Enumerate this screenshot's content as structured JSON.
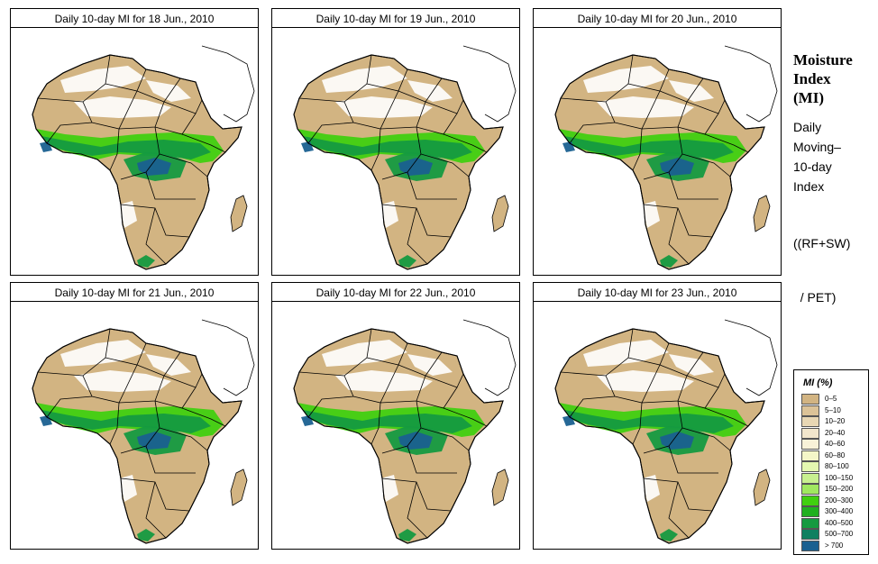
{
  "panels": [
    {
      "title": "Daily 10-day MI for  18 Jun., 2010"
    },
    {
      "title": "Daily 10-day MI for  19 Jun., 2010"
    },
    {
      "title": "Daily 10-day MI for  20 Jun., 2010"
    },
    {
      "title": "Daily 10-day MI for  21 Jun., 2010"
    },
    {
      "title": "Daily 10-day MI for  22 Jun., 2010"
    },
    {
      "title": "Daily 10-day MI for  23 Jun., 2010"
    }
  ],
  "sidebar": {
    "title_line1": "Moisture",
    "title_line2": "Index",
    "title_line3": "(MI)",
    "desc_line1": "Daily",
    "desc_line2": "Moving–",
    "desc_line3": "10-day",
    "desc_line4": "Index",
    "formula_line1": "((RF+SW)",
    "formula_line2": "  / PET)"
  },
  "legend": {
    "title": "MI (%)",
    "items": [
      {
        "label": "0–5",
        "color": "#d2b482"
      },
      {
        "label": "5–10",
        "color": "#dcc398"
      },
      {
        "label": "10–20",
        "color": "#e8d7b4"
      },
      {
        "label": "20–40",
        "color": "#f2e6cc"
      },
      {
        "label": "40–60",
        "color": "#f8f2d8"
      },
      {
        "label": "60–80",
        "color": "#f4f6c8"
      },
      {
        "label": "80–100",
        "color": "#e4f8b0"
      },
      {
        "label": "100–150",
        "color": "#c8f090"
      },
      {
        "label": "150–200",
        "color": "#a0e860"
      },
      {
        "label": "200–300",
        "color": "#40d010"
      },
      {
        "label": "300–400",
        "color": "#20b020"
      },
      {
        "label": "400–500",
        "color": "#159a40"
      },
      {
        "label": "500–700",
        "color": "#0f8060"
      },
      {
        "label": "> 700",
        "color": "#1a6090"
      }
    ]
  },
  "colors": {
    "desert": "#ffffff",
    "land": "#d2b482",
    "sahel_green": "#40d010",
    "forest_green": "#159a40",
    "wet_core": "#1a6090"
  }
}
